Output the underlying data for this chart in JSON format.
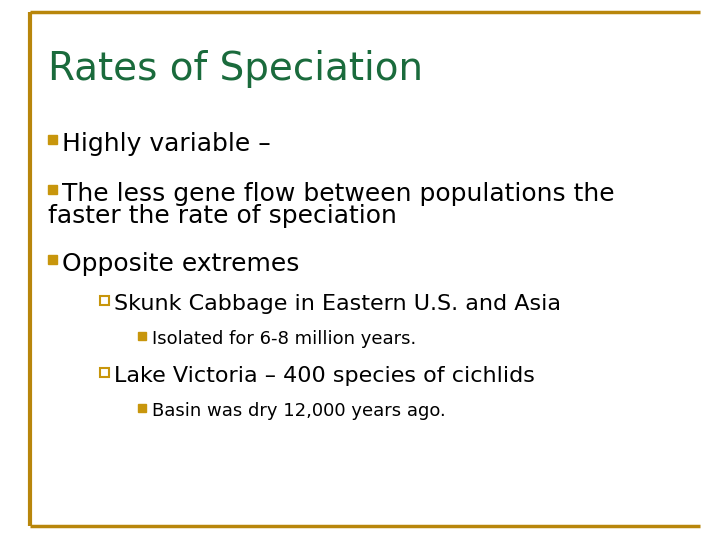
{
  "title": "Rates of Speciation",
  "title_color": "#1a6b3c",
  "title_fontsize": 28,
  "background_color": "#ffffff",
  "border_color": "#b8860b",
  "bullet_color": "#c8960c",
  "text_color": "#000000",
  "bullet1": "Highly variable –",
  "bullet2_line1": "The less gene flow between populations the",
  "bullet2_line2": "faster the rate of speciation",
  "bullet3": "Opposite extremes",
  "sub1": "Skunk Cabbage in Eastern U.S. and Asia",
  "sub1_detail": "Isolated for 6-8 million years.",
  "sub2": "Lake Victoria – 400 species of cichlids",
  "sub2_detail": "Basin was dry 12,000 years ago.",
  "main_fontsize": 18,
  "sub_fontsize": 16,
  "detail_fontsize": 13
}
